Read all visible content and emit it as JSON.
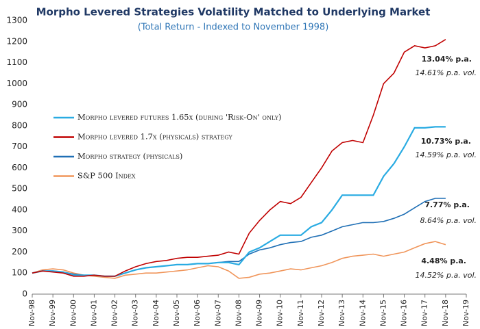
{
  "chart_data": {
    "type": "line",
    "title": "Morpho Levered Strategies Volatility Matched to Underlying Market",
    "subtitle": "(Total Return - Indexed to November 1998)",
    "x": [
      1998.875,
      1999.375,
      1999.875,
      2000.375,
      2000.875,
      2001.375,
      2001.875,
      2002.375,
      2002.875,
      2003.375,
      2003.875,
      2004.375,
      2004.875,
      2005.375,
      2005.875,
      2006.375,
      2006.875,
      2007.375,
      2007.875,
      2008.375,
      2008.875,
      2009.375,
      2009.875,
      2010.375,
      2010.875,
      2011.375,
      2011.875,
      2012.375,
      2012.875,
      2013.375,
      2013.875,
      2014.375,
      2014.875,
      2015.375,
      2015.875,
      2016.375,
      2016.875,
      2017.375,
      2017.875,
      2018.375,
      2018.875
    ],
    "series": [
      {
        "name": "Morpho levered futures 1.65x (during 'Risk-On' only)",
        "color": "#29abe2",
        "values": [
          100,
          110,
          110,
          105,
          90,
          90,
          90,
          85,
          85,
          100,
          115,
          125,
          130,
          135,
          140,
          140,
          145,
          145,
          150,
          150,
          140,
          200,
          220,
          250,
          280,
          280,
          280,
          320,
          340,
          400,
          470,
          470,
          470,
          470,
          560,
          620,
          700,
          790,
          790,
          795,
          795
        ]
      },
      {
        "name": "Morpho levered 1.7x (physicals) strategy",
        "color": "#c00000",
        "values": [
          100,
          110,
          105,
          100,
          85,
          85,
          90,
          85,
          85,
          110,
          130,
          145,
          155,
          160,
          170,
          175,
          175,
          180,
          185,
          200,
          190,
          290,
          350,
          400,
          440,
          430,
          460,
          530,
          600,
          680,
          720,
          730,
          720,
          850,
          1000,
          1050,
          1150,
          1180,
          1170,
          1180,
          1210
        ]
      },
      {
        "name": "Morpho strategy (physicals)",
        "color": "#1f6fb5",
        "values": [
          100,
          110,
          110,
          105,
          95,
          90,
          90,
          85,
          85,
          100,
          115,
          125,
          130,
          135,
          140,
          140,
          145,
          145,
          150,
          155,
          155,
          190,
          210,
          220,
          235,
          245,
          250,
          270,
          280,
          300,
          320,
          330,
          340,
          340,
          345,
          360,
          380,
          410,
          440,
          455,
          455
        ]
      },
      {
        "name": "S&P 500 Index",
        "color": "#f0955a",
        "values": [
          100,
          115,
          120,
          115,
          100,
          90,
          85,
          80,
          75,
          90,
          95,
          100,
          100,
          105,
          110,
          115,
          125,
          135,
          130,
          110,
          75,
          80,
          95,
          100,
          110,
          120,
          115,
          125,
          135,
          150,
          170,
          180,
          185,
          190,
          180,
          190,
          200,
          220,
          240,
          250,
          235
        ]
      }
    ],
    "annotations": [
      {
        "text": "13.04% p.a.",
        "color": "#c00000"
      },
      {
        "text": "14.61% p.a. vol.",
        "color": "#c00000"
      },
      {
        "text": "10.73% p.a.",
        "color": "#29abe2"
      },
      {
        "text": "14.59% p.a. vol.",
        "color": "#29abe2"
      },
      {
        "text": "7.77% p.a.",
        "color": "#1f6fb5"
      },
      {
        "text": "8.64% p.a. vol.",
        "color": "#1f6fb5"
      },
      {
        "text": "4.48% p.a.",
        "color": "#f0955a"
      },
      {
        "text": "14.52% p.a. vol.",
        "color": "#f0955a"
      }
    ],
    "xlim": [
      1998.875,
      2019.875
    ],
    "xticks": [
      {
        "value": 1998.875,
        "label": "Nov-98"
      },
      {
        "value": 1999.875,
        "label": "Nov-99"
      },
      {
        "value": 2000.875,
        "label": "Nov-00"
      },
      {
        "value": 2001.875,
        "label": "Nov-01"
      },
      {
        "value": 2002.875,
        "label": "Nov-02"
      },
      {
        "value": 2003.875,
        "label": "Nov-03"
      },
      {
        "value": 2004.875,
        "label": "Nov-04"
      },
      {
        "value": 2005.875,
        "label": "Nov-05"
      },
      {
        "value": 2006.875,
        "label": "Nov-06"
      },
      {
        "value": 2007.875,
        "label": "Nov-07"
      },
      {
        "value": 2008.875,
        "label": "Nov-08"
      },
      {
        "value": 2009.875,
        "label": "Nov-09"
      },
      {
        "value": 2010.875,
        "label": "Nov-10"
      },
      {
        "value": 2011.875,
        "label": "Nov-11"
      },
      {
        "value": 2012.875,
        "label": "Nov-12"
      },
      {
        "value": 2013.875,
        "label": "Nov-13"
      },
      {
        "value": 2014.875,
        "label": "Nov-14"
      },
      {
        "value": 2015.875,
        "label": "Nov-15"
      },
      {
        "value": 2016.875,
        "label": "Nov-16"
      },
      {
        "value": 2017.875,
        "label": "Nov-17"
      },
      {
        "value": 2018.875,
        "label": "Nov-18"
      },
      {
        "value": 2019.875,
        "label": "Nov-19"
      }
    ],
    "ylim": [
      0,
      1300
    ],
    "yticks": [
      0,
      100,
      200,
      300,
      400,
      500,
      600,
      700,
      800,
      900,
      1000,
      1100,
      1200,
      1300
    ],
    "grid": false
  }
}
